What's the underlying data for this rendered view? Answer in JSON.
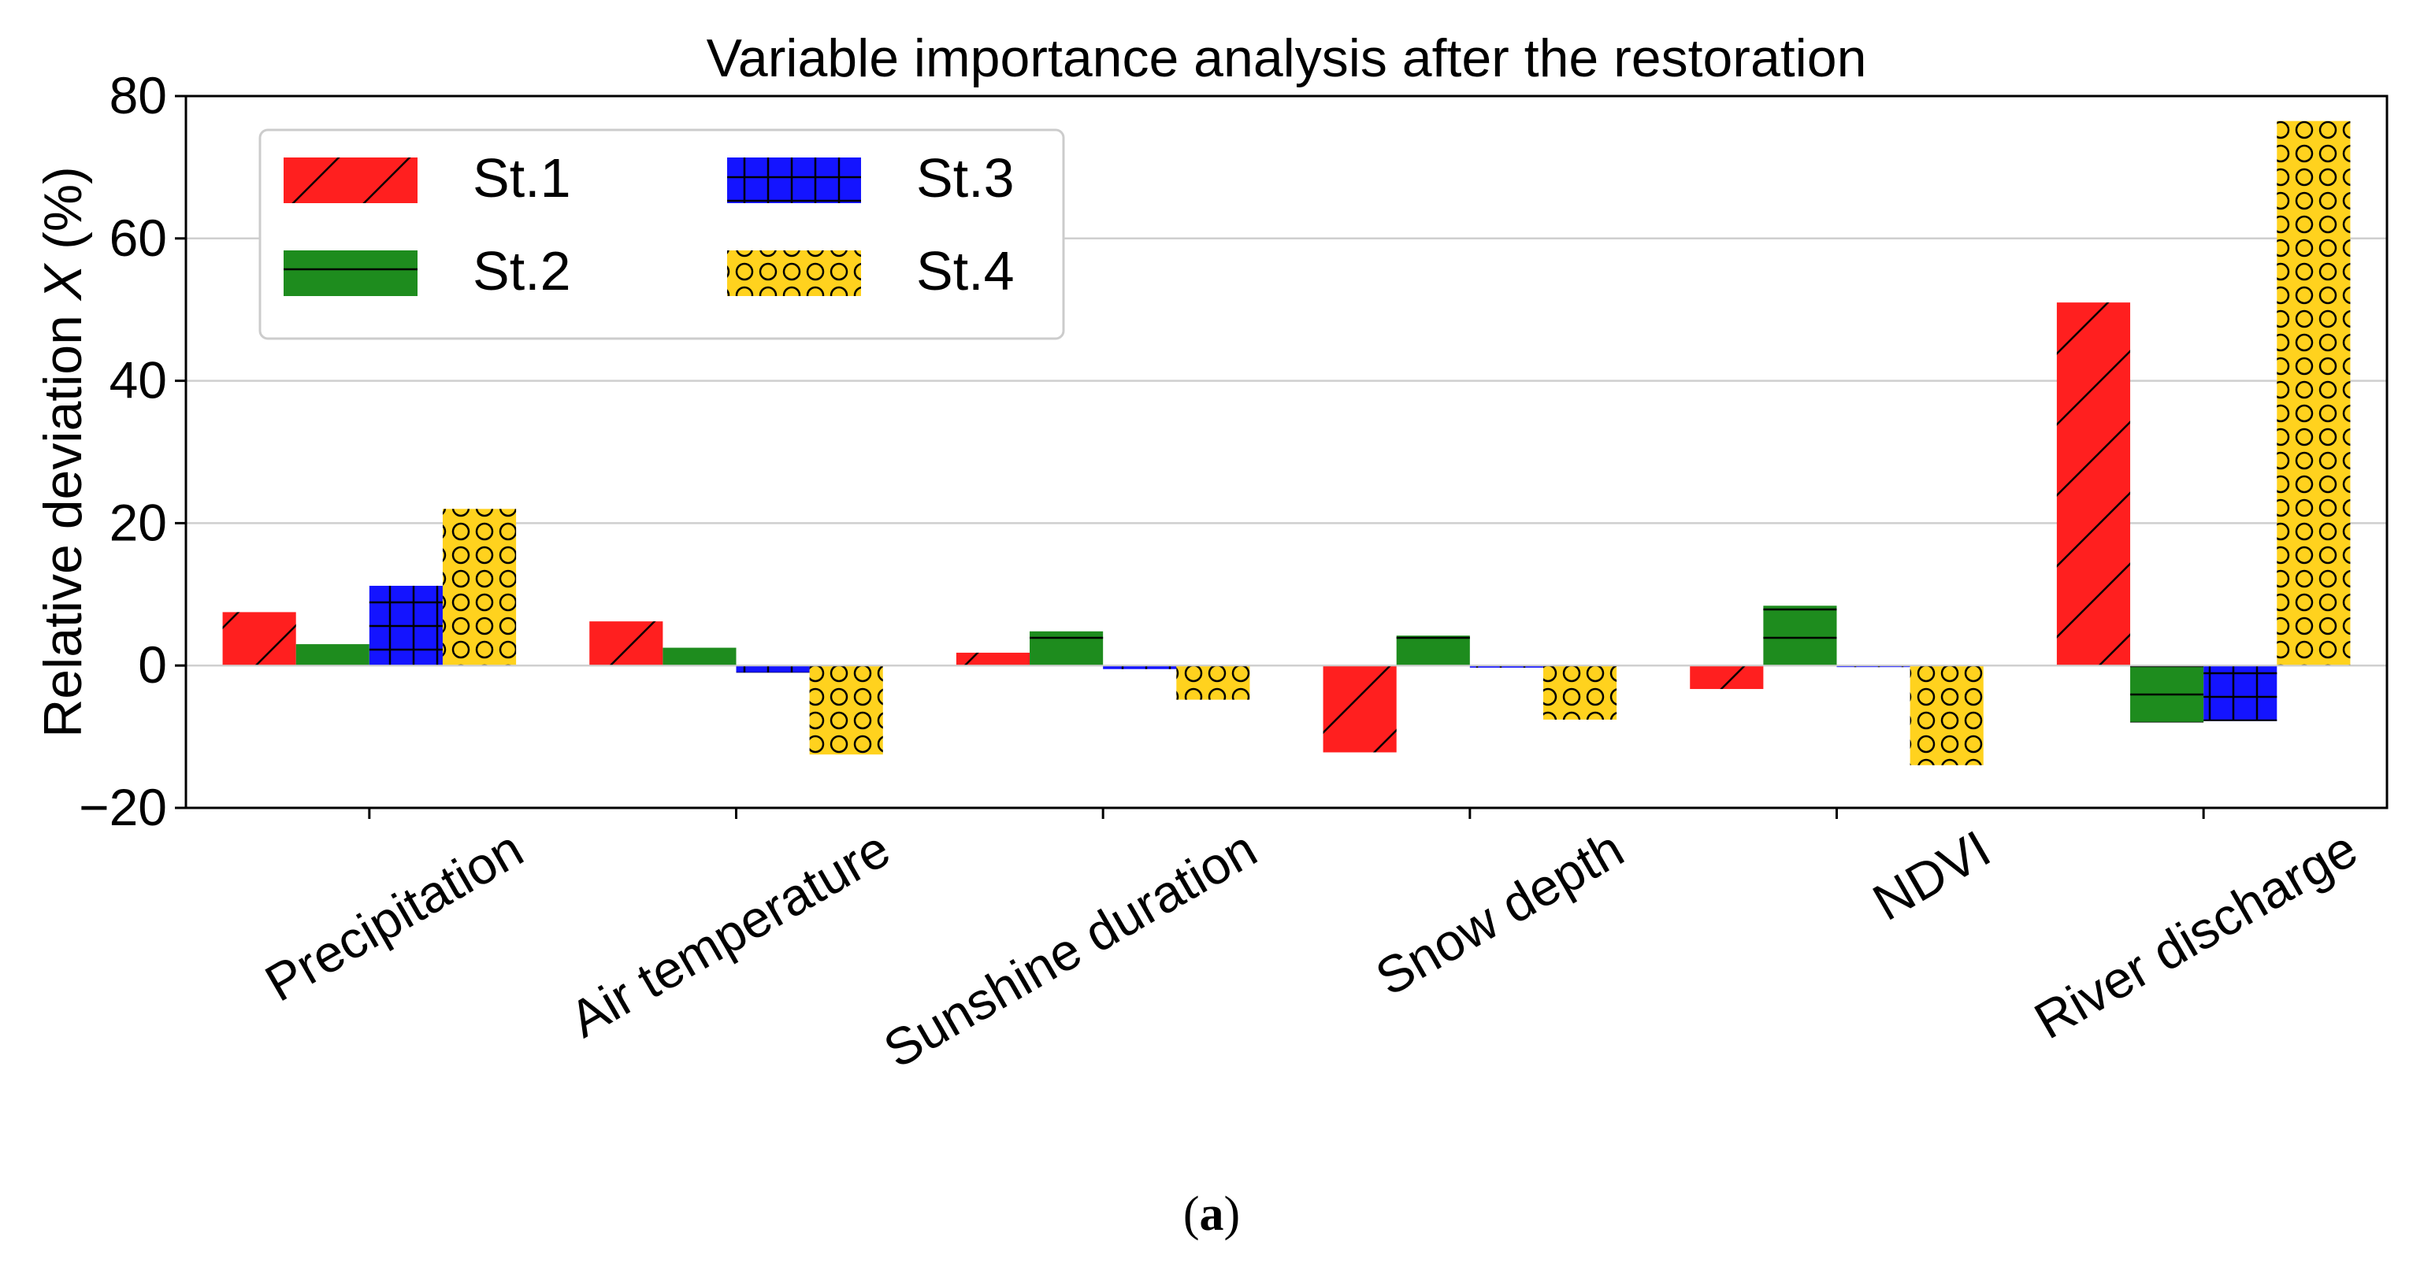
{
  "chart_data": {
    "type": "bar",
    "title": "Variable importance analysis after the restoration",
    "ylabel_prefix": "Relative deviation ",
    "ylabel_var": "X",
    "ylabel_suffix": " (%)",
    "xlabel": "",
    "ylim": [
      -20,
      80
    ],
    "yticks": [
      -20,
      0,
      20,
      40,
      60,
      80
    ],
    "ytick_labels": [
      "−20",
      "0",
      "20",
      "40",
      "60",
      "80"
    ],
    "grid": true,
    "legend_position": "upper-left",
    "categories": [
      "Precipitation",
      "Air temperature",
      "Sunshine duration",
      "Snow depth",
      "NDVI",
      "River discharge"
    ],
    "series": [
      {
        "name": "St.1",
        "color": "#ff1f1f",
        "pattern": "diagonal",
        "values": [
          7.5,
          6.2,
          1.8,
          -12.2,
          -3.3,
          51.0
        ]
      },
      {
        "name": "St.2",
        "color": "#1e8c1e",
        "pattern": "horizontal",
        "values": [
          3.0,
          2.5,
          4.8,
          4.2,
          8.4,
          -8.0
        ]
      },
      {
        "name": "St.3",
        "color": "#1414ff",
        "pattern": "grid",
        "values": [
          11.2,
          -1.0,
          -0.5,
          -0.3,
          0.0,
          -7.8
        ]
      },
      {
        "name": "St.4",
        "color": "#ffd21e",
        "pattern": "circles",
        "values": [
          22.0,
          -12.5,
          -4.8,
          -7.6,
          -14.0,
          76.5
        ]
      }
    ],
    "caption_open": "(",
    "caption_letter": "a",
    "caption_close": ")"
  }
}
